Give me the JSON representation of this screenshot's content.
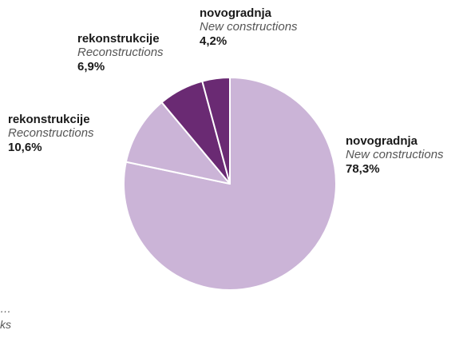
{
  "chart_data": {
    "type": "pie",
    "slices": [
      {
        "label_hr": "novogradnja",
        "label_en": "New constructions",
        "value": 78.3,
        "display": "78,3%",
        "color": "#cbb4d7"
      },
      {
        "label_hr": "rekonstrukcije",
        "label_en": "Reconstructions",
        "value": 10.6,
        "display": "10,6%",
        "color": "#cbb4d7"
      },
      {
        "label_hr": "rekonstrukcije",
        "label_en": "Reconstructions",
        "value": 6.9,
        "display": "6,9%",
        "color": "#6a2a73"
      },
      {
        "label_hr": "novogradnja",
        "label_en": "New constructions",
        "value": 4.2,
        "display": "4,2%",
        "color": "#6a2a73"
      }
    ],
    "separator_color": "#ffffff"
  },
  "footer": {
    "fragment_1": "…",
    "fragment_2": "ks"
  }
}
